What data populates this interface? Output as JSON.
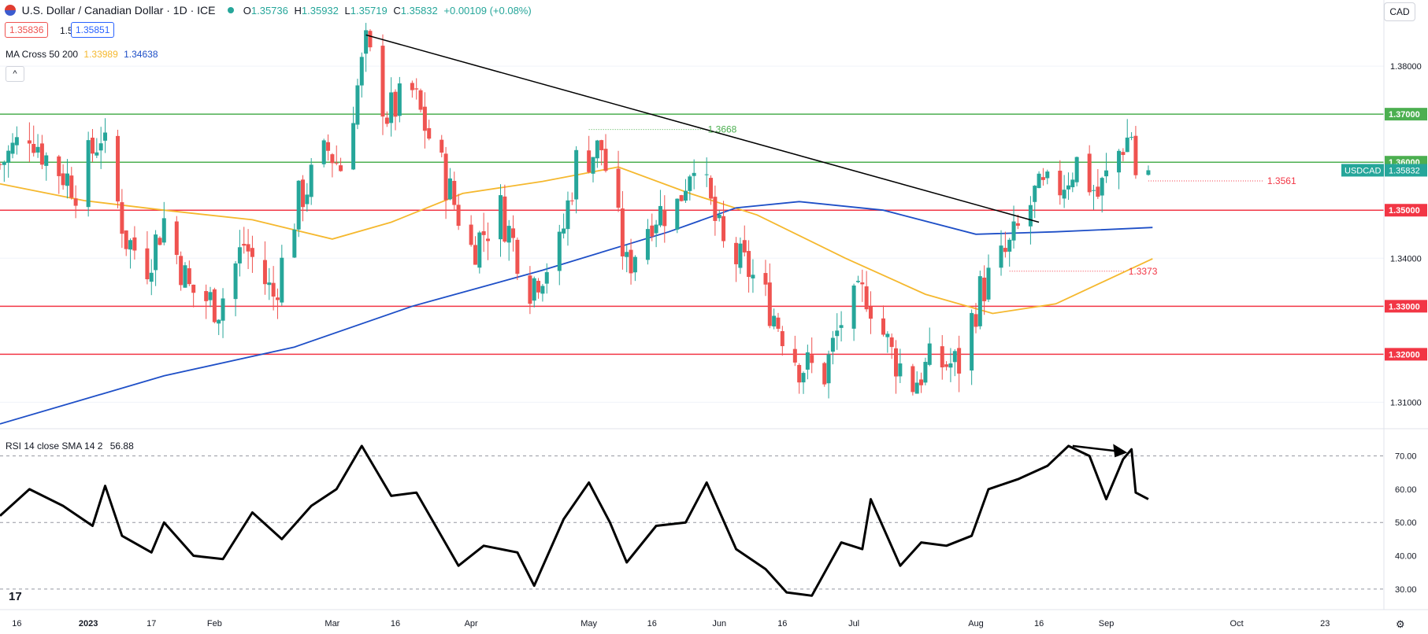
{
  "header": {
    "symbol": "U.S. Dollar / Canadian Dollar · 1D · ICE",
    "o_label": "O",
    "o": "1.35736",
    "h_label": "H",
    "h": "1.35932",
    "l_label": "L",
    "l": "1.35719",
    "c_label": "C",
    "c": "1.35832",
    "change": "+0.00109 (+0.08%)",
    "bid": "1.35836",
    "spread": "1.5",
    "ask": "1.35851",
    "ma_label": "MA Cross 50 200",
    "ma50": "1.33989",
    "ma200": "1.34638",
    "currency": "CAD",
    "rsi_label": "RSI 14 close SMA 14 2",
    "rsi_value": "56.88"
  },
  "colors": {
    "up": "#26a69a",
    "down": "#ef5350",
    "ma50": "#f5b82e",
    "ma200": "#1e4fc7",
    "support": "#f23645",
    "resistance": "#4caf50"
  },
  "chart_data": [
    {
      "type": "candlestick",
      "title": "U.S. Dollar / Canadian Dollar · 1D · ICE",
      "ylim": [
        1.3045,
        1.3905
      ],
      "y_ticks": [
        1.31,
        1.32,
        1.33,
        1.34,
        1.35,
        1.36,
        1.37,
        1.38
      ],
      "y_tick_labels": [
        "1.31000",
        "1.32000",
        "1.33000",
        "1.34000",
        "1.35000",
        "1.36000",
        "1.37000",
        "1.38000"
      ],
      "x_ticks": [
        {
          "label": "16",
          "date": "2022-12-16"
        },
        {
          "label": "2023",
          "date": "2023-01-02"
        },
        {
          "label": "17",
          "date": "2023-01-17"
        },
        {
          "label": "Feb",
          "date": "2023-02-01"
        },
        {
          "label": "Mar",
          "date": "2023-03-01"
        },
        {
          "label": "16",
          "date": "2023-03-16"
        },
        {
          "label": "Apr",
          "date": "2023-04-03"
        },
        {
          "label": "May",
          "date": "2023-05-01"
        },
        {
          "label": "16",
          "date": "2023-05-16"
        },
        {
          "label": "Jun",
          "date": "2023-06-01"
        },
        {
          "label": "16",
          "date": "2023-06-16"
        },
        {
          "label": "Jul",
          "date": "2023-07-03"
        },
        {
          "label": "Aug",
          "date": "2023-08-01"
        },
        {
          "label": "16",
          "date": "2023-08-16"
        },
        {
          "label": "Sep",
          "date": "2023-09-01"
        },
        {
          "label": "Oct",
          "date": "2023-10-02"
        },
        {
          "label": "23",
          "date": "2023-10-23"
        }
      ],
      "x_range": [
        "2022-12-12",
        "2023-11-06"
      ],
      "closes": [
        {
          "date": "2022-12-12",
          "close": 1.3595
        },
        {
          "date": "2022-12-19",
          "close": 1.3668
        },
        {
          "date": "2022-12-23",
          "close": 1.361
        },
        {
          "date": "2022-12-30",
          "close": 1.355
        },
        {
          "date": "2023-01-05",
          "close": 1.366
        },
        {
          "date": "2023-01-11",
          "close": 1.344
        },
        {
          "date": "2023-01-16",
          "close": 1.339
        },
        {
          "date": "2023-01-20",
          "close": 1.348
        },
        {
          "date": "2023-01-26",
          "close": 1.3335
        },
        {
          "date": "2023-02-02",
          "close": 1.33
        },
        {
          "date": "2023-02-08",
          "close": 1.343
        },
        {
          "date": "2023-02-15",
          "close": 1.332
        },
        {
          "date": "2023-02-21",
          "close": 1.352
        },
        {
          "date": "2023-02-28",
          "close": 1.3625
        },
        {
          "date": "2023-03-03",
          "close": 1.359
        },
        {
          "date": "2023-03-09",
          "close": 1.384
        },
        {
          "date": "2023-03-14",
          "close": 1.37
        },
        {
          "date": "2023-03-20",
          "close": 1.3745
        },
        {
          "date": "2023-03-27",
          "close": 1.3585
        },
        {
          "date": "2023-04-03",
          "close": 1.342
        },
        {
          "date": "2023-04-10",
          "close": 1.35
        },
        {
          "date": "2023-04-17",
          "close": 1.3345
        },
        {
          "date": "2023-04-24",
          "close": 1.342
        },
        {
          "date": "2023-04-28",
          "close": 1.36
        },
        {
          "date": "2023-05-04",
          "close": 1.363
        },
        {
          "date": "2023-05-10",
          "close": 1.338
        },
        {
          "date": "2023-05-16",
          "close": 1.349
        },
        {
          "date": "2023-05-22",
          "close": 1.351
        },
        {
          "date": "2023-05-26",
          "close": 1.362
        },
        {
          "date": "2023-06-02",
          "close": 1.342
        },
        {
          "date": "2023-06-08",
          "close": 1.3375
        },
        {
          "date": "2023-06-13",
          "close": 1.33
        },
        {
          "date": "2023-06-20",
          "close": 1.318
        },
        {
          "date": "2023-06-26",
          "close": 1.316
        },
        {
          "date": "2023-06-30",
          "close": 1.327
        },
        {
          "date": "2023-07-06",
          "close": 1.333
        },
        {
          "date": "2023-07-12",
          "close": 1.32
        },
        {
          "date": "2023-07-17",
          "close": 1.314
        },
        {
          "date": "2023-07-21",
          "close": 1.318
        },
        {
          "date": "2023-07-28",
          "close": 1.318
        },
        {
          "date": "2023-08-02",
          "close": 1.333
        },
        {
          "date": "2023-08-09",
          "close": 1.342
        },
        {
          "date": "2023-08-15",
          "close": 1.353
        },
        {
          "date": "2023-08-21",
          "close": 1.355
        },
        {
          "date": "2023-08-25",
          "close": 1.36
        },
        {
          "date": "2023-08-30",
          "close": 1.353
        },
        {
          "date": "2023-09-05",
          "close": 1.364
        },
        {
          "date": "2023-09-07",
          "close": 1.366
        },
        {
          "date": "2023-09-08",
          "close": 1.3575
        },
        {
          "date": "2023-09-11",
          "close": 1.3583
        }
      ],
      "series": [
        {
          "name": "MA 50",
          "values": [
            {
              "date": "2022-12-12",
              "value": 1.3555
            },
            {
              "date": "2023-01-01",
              "value": 1.352
            },
            {
              "date": "2023-01-20",
              "value": 1.35
            },
            {
              "date": "2023-02-10",
              "value": 1.348
            },
            {
              "date": "2023-03-01",
              "value": 1.344
            },
            {
              "date": "2023-03-15",
              "value": 1.3475
            },
            {
              "date": "2023-04-01",
              "value": 1.3535
            },
            {
              "date": "2023-04-20",
              "value": 1.356
            },
            {
              "date": "2023-05-08",
              "value": 1.359
            },
            {
              "date": "2023-05-25",
              "value": 1.3535
            },
            {
              "date": "2023-06-10",
              "value": 1.349
            },
            {
              "date": "2023-07-01",
              "value": 1.34
            },
            {
              "date": "2023-07-20",
              "value": 1.3325
            },
            {
              "date": "2023-08-05",
              "value": 1.3285
            },
            {
              "date": "2023-08-20",
              "value": 1.3305
            },
            {
              "date": "2023-09-12",
              "value": 1.3399
            }
          ]
        },
        {
          "name": "MA 200",
          "values": [
            {
              "date": "2022-12-12",
              "value": 1.3055
            },
            {
              "date": "2023-01-20",
              "value": 1.3155
            },
            {
              "date": "2023-02-20",
              "value": 1.3215
            },
            {
              "date": "2023-03-20",
              "value": 1.33
            },
            {
              "date": "2023-04-20",
              "value": 1.3375
            },
            {
              "date": "2023-05-20",
              "value": 1.3455
            },
            {
              "date": "2023-06-05",
              "value": 1.3505
            },
            {
              "date": "2023-06-20",
              "value": 1.3518
            },
            {
              "date": "2023-07-10",
              "value": 1.35
            },
            {
              "date": "2023-08-01",
              "value": 1.345
            },
            {
              "date": "2023-08-20",
              "value": 1.3455
            },
            {
              "date": "2023-09-12",
              "value": 1.3464
            }
          ]
        }
      ],
      "support_lines": [
        1.35,
        1.33,
        1.32
      ],
      "resistance_lines": [
        1.37,
        1.36
      ],
      "trendline": [
        {
          "date": "2023-03-09",
          "value": 1.3865
        },
        {
          "date": "2023-08-16",
          "value": 1.3475
        }
      ],
      "annotations": [
        {
          "label": "1.3668",
          "value": 1.3668,
          "from": "2023-05-01",
          "color": "resistance"
        },
        {
          "label": "1.3561",
          "value": 1.3561,
          "from": "2023-09-11",
          "color": "support"
        },
        {
          "label": "1.3373",
          "value": 1.3373,
          "from": "2023-08-09",
          "color": "support"
        }
      ],
      "price_labels": [
        {
          "value": 1.37,
          "text": "1.37000",
          "color": "resistance"
        },
        {
          "value": 1.36,
          "text": "1.36000",
          "color": "resistance"
        },
        {
          "value": 1.35,
          "text": "1.35000",
          "color": "support"
        },
        {
          "value": 1.33,
          "text": "1.33000",
          "color": "support"
        },
        {
          "value": 1.32,
          "text": "1.32000",
          "color": "support"
        }
      ],
      "last_price": {
        "symbol": "USDCAD",
        "text": "1.35832",
        "value": 1.35832
      }
    },
    {
      "type": "line",
      "title": "RSI 14 close SMA 14 2",
      "ylim": [
        25,
        77
      ],
      "y_ticks": [
        30,
        40,
        50,
        60,
        70
      ],
      "y_tick_labels": [
        "30.00",
        "40.00",
        "50.00",
        "60.00",
        "70.00"
      ],
      "reference_lines": [
        30,
        50,
        70
      ],
      "series": [
        {
          "name": "RSI",
          "values": [
            {
              "date": "2022-12-12",
              "value": 52
            },
            {
              "date": "2022-12-19",
              "value": 60
            },
            {
              "date": "2022-12-27",
              "value": 55
            },
            {
              "date": "2023-01-03",
              "value": 49
            },
            {
              "date": "2023-01-06",
              "value": 61
            },
            {
              "date": "2023-01-10",
              "value": 46
            },
            {
              "date": "2023-01-17",
              "value": 41
            },
            {
              "date": "2023-01-20",
              "value": 50
            },
            {
              "date": "2023-01-27",
              "value": 40
            },
            {
              "date": "2023-02-03",
              "value": 39
            },
            {
              "date": "2023-02-10",
              "value": 53
            },
            {
              "date": "2023-02-17",
              "value": 45
            },
            {
              "date": "2023-02-24",
              "value": 55
            },
            {
              "date": "2023-03-02",
              "value": 60
            },
            {
              "date": "2023-03-08",
              "value": 73
            },
            {
              "date": "2023-03-15",
              "value": 58
            },
            {
              "date": "2023-03-21",
              "value": 59
            },
            {
              "date": "2023-03-31",
              "value": 37
            },
            {
              "date": "2023-04-06",
              "value": 43
            },
            {
              "date": "2023-04-14",
              "value": 41
            },
            {
              "date": "2023-04-18",
              "value": 31
            },
            {
              "date": "2023-04-25",
              "value": 51
            },
            {
              "date": "2023-05-01",
              "value": 62
            },
            {
              "date": "2023-05-06",
              "value": 50
            },
            {
              "date": "2023-05-10",
              "value": 38
            },
            {
              "date": "2023-05-17",
              "value": 49
            },
            {
              "date": "2023-05-24",
              "value": 50
            },
            {
              "date": "2023-05-29",
              "value": 62
            },
            {
              "date": "2023-06-05",
              "value": 42
            },
            {
              "date": "2023-06-12",
              "value": 36
            },
            {
              "date": "2023-06-17",
              "value": 29
            },
            {
              "date": "2023-06-23",
              "value": 28
            },
            {
              "date": "2023-06-30",
              "value": 44
            },
            {
              "date": "2023-07-05",
              "value": 42
            },
            {
              "date": "2023-07-07",
              "value": 57
            },
            {
              "date": "2023-07-14",
              "value": 37
            },
            {
              "date": "2023-07-19",
              "value": 44
            },
            {
              "date": "2023-07-25",
              "value": 43
            },
            {
              "date": "2023-07-31",
              "value": 46
            },
            {
              "date": "2023-08-04",
              "value": 60
            },
            {
              "date": "2023-08-11",
              "value": 63
            },
            {
              "date": "2023-08-18",
              "value": 67
            },
            {
              "date": "2023-08-23",
              "value": 73
            },
            {
              "date": "2023-08-28",
              "value": 70
            },
            {
              "date": "2023-09-01",
              "value": 57
            },
            {
              "date": "2023-09-05",
              "value": 69
            },
            {
              "date": "2023-09-07",
              "value": 72
            },
            {
              "date": "2023-09-08",
              "value": 59
            },
            {
              "date": "2023-09-11",
              "value": 57
            }
          ]
        }
      ],
      "arrow": [
        {
          "date": "2023-08-24",
          "value": 73
        },
        {
          "date": "2023-09-06",
          "value": 71
        }
      ]
    }
  ]
}
